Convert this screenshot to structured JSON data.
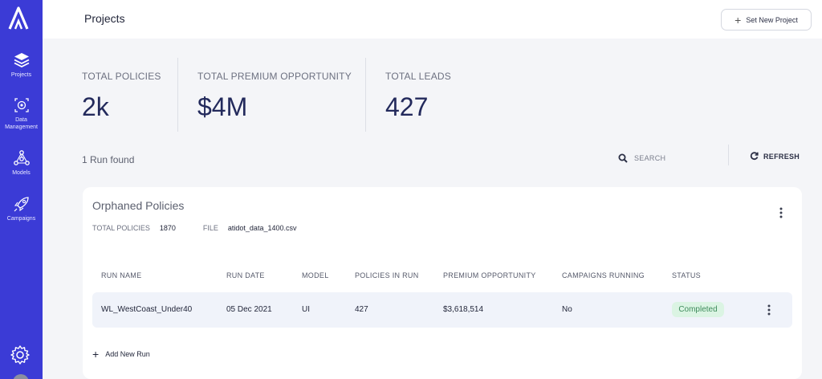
{
  "sidebar": {
    "items": [
      {
        "label": "Projects",
        "icon": "layers-icon"
      },
      {
        "label": "Data\nManagement",
        "icon": "data-management-icon"
      },
      {
        "label": "Models",
        "icon": "network-icon"
      },
      {
        "label": "Campaigns",
        "icon": "rocket-icon"
      }
    ],
    "bottom_icon": "gear-icon"
  },
  "header": {
    "title": "Projects",
    "set_project_label": "Set New Project"
  },
  "stats": [
    {
      "label": "TOTAL POLICIES",
      "value": "2k"
    },
    {
      "label": "TOTAL PREMIUM OPPORTUNITY",
      "value": "$4M"
    },
    {
      "label": "TOTAL LEADS",
      "value": "427"
    }
  ],
  "toolbar": {
    "runs_found": "1 Run found",
    "search_placeholder": "SEARCH",
    "refresh_label": "REFRESH"
  },
  "project": {
    "title": "Orphaned Policies",
    "meta_policies_label": "TOTAL POLICIES",
    "meta_policies_value": "1870",
    "meta_file_label": "FILE",
    "meta_file_value": "atidot_data_1400.csv",
    "columns": [
      "RUN NAME",
      "RUN DATE",
      "MODEL",
      "POLICIES IN RUN",
      "PREMIUM OPPORTUNITY",
      "CAMPAIGNS RUNNING",
      "STATUS"
    ],
    "rows": [
      {
        "run_name": "WL_WestCoast_Under40",
        "run_date": "05 Dec 2021",
        "model": "UI",
        "policies": "427",
        "premium": "$3,618,514",
        "campaigns": "No",
        "status": "Completed"
      }
    ],
    "add_run_label": "Add New Run"
  },
  "colors": {
    "sidebar": "#3b3bd6",
    "accent_text": "#232a5c",
    "status_bg": "#dbf4e3",
    "status_text": "#3f8c5c"
  }
}
